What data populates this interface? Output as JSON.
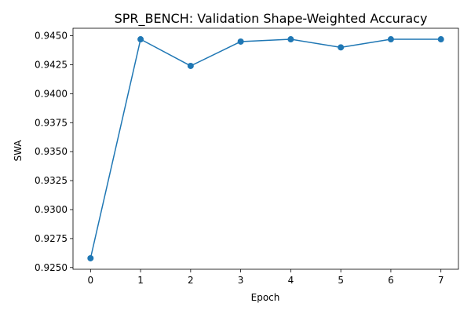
{
  "chart_data": {
    "type": "line",
    "title": "SPR_BENCH: Validation Shape-Weighted Accuracy",
    "xlabel": "Epoch",
    "ylabel": "SWA",
    "x": [
      0,
      1,
      2,
      3,
      4,
      5,
      6,
      7
    ],
    "series": [
      {
        "values": [
          0.9258,
          0.9447,
          0.9424,
          0.9445,
          0.9447,
          0.944,
          0.9447,
          0.9447
        ]
      }
    ],
    "xticks": [
      "0",
      "1",
      "2",
      "3",
      "4",
      "5",
      "6",
      "7"
    ],
    "yticks": [
      "0.9250",
      "0.9275",
      "0.9300",
      "0.9325",
      "0.9350",
      "0.9375",
      "0.9400",
      "0.9425",
      "0.9450"
    ],
    "xlim": [
      -0.35,
      7.35
    ],
    "ylim": [
      0.92485,
      0.94565
    ],
    "grid": false,
    "colors": {
      "line": "#1f77b4",
      "axis": "#000000"
    }
  }
}
